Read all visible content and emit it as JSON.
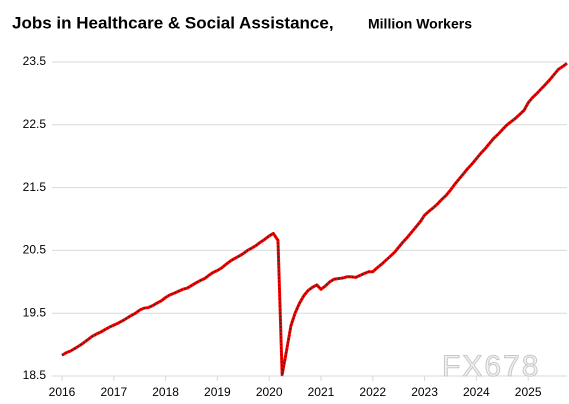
{
  "chart_data": {
    "type": "line",
    "title": "Jobs in Healthcare & Social Assistance,",
    "subtitle": "Million Workers",
    "watermark": "FX678",
    "xlim": [
      2016,
      2025.75
    ],
    "xticks": [
      2016,
      2017,
      2018,
      2019,
      2020,
      2021,
      2022,
      2023,
      2024,
      2025
    ],
    "ylim": [
      18.5,
      23.5
    ],
    "yticks": [
      18.5,
      19.5,
      20.5,
      21.5,
      22.5,
      23.5
    ],
    "grid": true,
    "series": [
      {
        "color": "#ff0000",
        "x": [
          2016,
          2016.08,
          2016.17,
          2016.25,
          2016.33,
          2016.42,
          2016.5,
          2016.58,
          2016.67,
          2016.75,
          2016.83,
          2016.92,
          2017,
          2017.08,
          2017.17,
          2017.25,
          2017.33,
          2017.42,
          2017.5,
          2017.58,
          2017.67,
          2017.75,
          2017.83,
          2017.92,
          2018,
          2018.08,
          2018.17,
          2018.25,
          2018.33,
          2018.42,
          2018.5,
          2018.58,
          2018.67,
          2018.75,
          2018.83,
          2018.92,
          2019,
          2019.08,
          2019.17,
          2019.25,
          2019.33,
          2019.42,
          2019.5,
          2019.58,
          2019.67,
          2019.75,
          2019.83,
          2019.92,
          2020,
          2020.08,
          2020.17,
          2020.25,
          2020.33,
          2020.42,
          2020.5,
          2020.58,
          2020.67,
          2020.75,
          2020.83,
          2020.92,
          2021,
          2021.08,
          2021.17,
          2021.25,
          2021.33,
          2021.42,
          2021.5,
          2021.58,
          2021.67,
          2021.75,
          2021.83,
          2021.92,
          2022,
          2022.08,
          2022.17,
          2022.25,
          2022.33,
          2022.42,
          2022.5,
          2022.58,
          2022.67,
          2022.75,
          2022.83,
          2022.92,
          2023,
          2023.08,
          2023.17,
          2023.25,
          2023.33,
          2023.42,
          2023.5,
          2023.58,
          2023.67,
          2023.75,
          2023.83,
          2023.92,
          2024,
          2024.08,
          2024.17,
          2024.25,
          2024.33,
          2024.42,
          2024.5,
          2024.58,
          2024.67,
          2024.75,
          2024.83,
          2024.92,
          2025,
          2025.08,
          2025.17,
          2025.25,
          2025.33,
          2025.42,
          2025.5,
          2025.58,
          2025.67,
          2025.75
        ],
        "values": [
          18.83,
          18.87,
          18.9,
          18.94,
          18.98,
          19.03,
          19.08,
          19.13,
          19.17,
          19.2,
          19.24,
          19.28,
          19.31,
          19.34,
          19.38,
          19.42,
          19.46,
          19.5,
          19.55,
          19.58,
          19.59,
          19.62,
          19.66,
          19.7,
          19.75,
          19.79,
          19.82,
          19.85,
          19.88,
          19.9,
          19.94,
          19.98,
          20.02,
          20.05,
          20.1,
          20.15,
          20.18,
          20.22,
          20.28,
          20.33,
          20.37,
          20.41,
          20.45,
          20.5,
          20.54,
          20.58,
          20.63,
          20.68,
          20.73,
          20.77,
          20.66,
          18.52,
          18.88,
          19.3,
          19.5,
          19.65,
          19.78,
          19.86,
          19.91,
          19.95,
          19.88,
          19.93,
          20,
          20.04,
          20.05,
          20.06,
          20.08,
          20.08,
          20.07,
          20.1,
          20.13,
          20.16,
          20.16,
          20.22,
          20.28,
          20.34,
          20.4,
          20.47,
          20.55,
          20.63,
          20.71,
          20.79,
          20.87,
          20.96,
          21.06,
          21.12,
          21.18,
          21.24,
          21.31,
          21.38,
          21.46,
          21.55,
          21.64,
          21.72,
          21.8,
          21.88,
          21.96,
          22.04,
          22.12,
          22.2,
          22.28,
          22.35,
          22.42,
          22.49,
          22.55,
          22.6,
          22.66,
          22.73,
          22.85,
          22.93,
          23,
          23.07,
          23.14,
          23.22,
          23.3,
          23.38,
          23.43,
          23.48
        ]
      }
    ]
  }
}
